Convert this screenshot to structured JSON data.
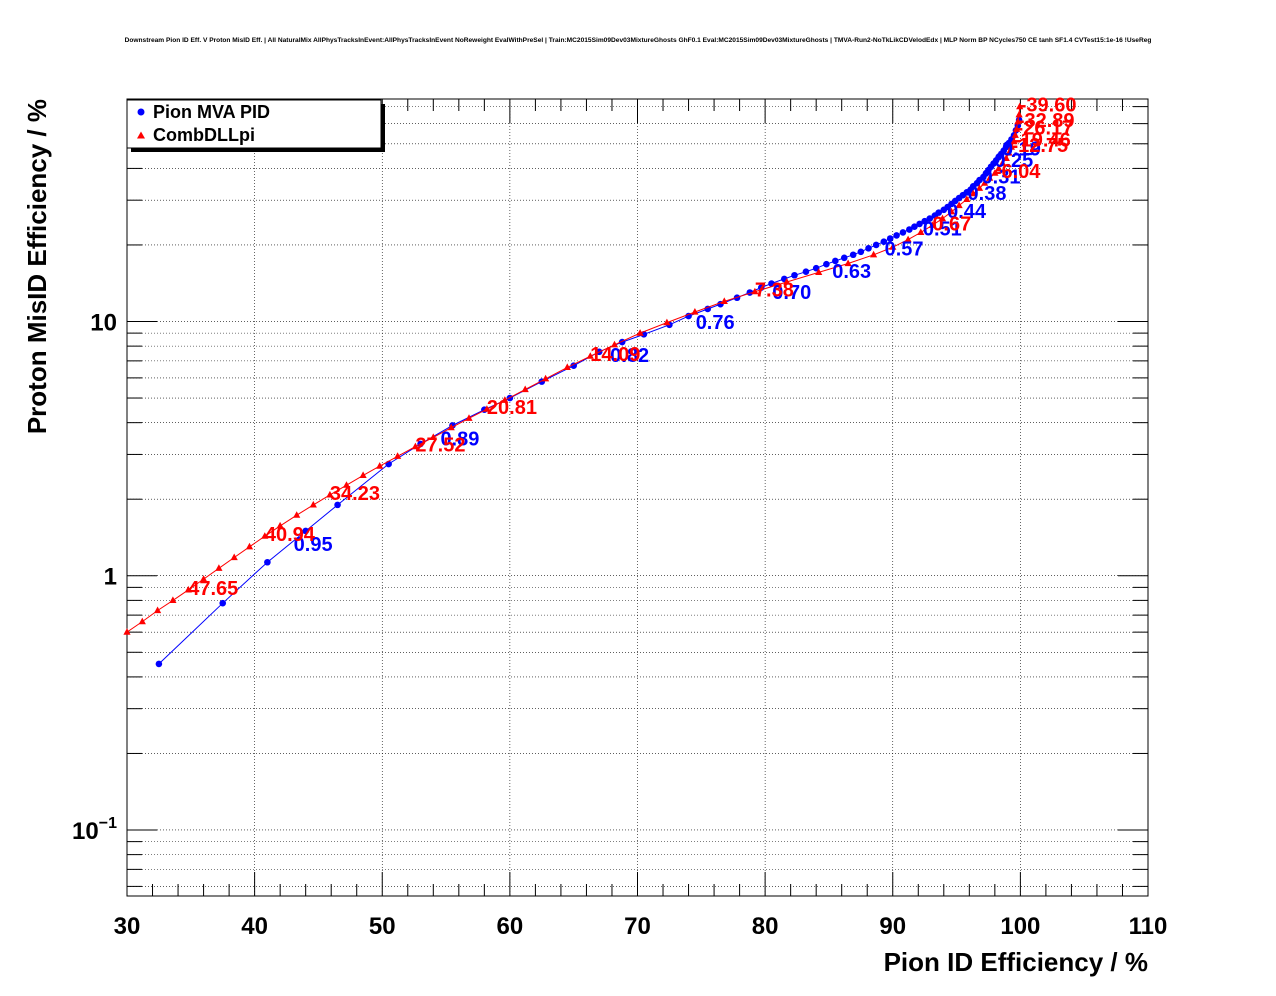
{
  "chart_data": {
    "type": "scatter",
    "title": "Downstream Pion ID Eff. V Proton MisID Eff. | All NaturalMix AllPhysTracksInEvent:AllPhysTracksInEvent NoReweight EvalWithPreSel | Train:MC2015Sim09Dev03MixtureGhosts GhF0.1 Eval:MC2015Sim09Dev03MixtureGhosts | TMVA-Run2-NoTkLikCDVelodEdx | MLP Norm BP NCycles750 CE tanh SF1.4 CVTest15:1e-16 !UseReg",
    "xlabel": "Pion ID Efficiency / %",
    "ylabel": "Proton MisID Efficiency / %",
    "xlim": [
      30,
      110
    ],
    "ylim": [
      0.055,
      75
    ],
    "yscale": "log",
    "grid": true,
    "legend_position": "top-left",
    "x_ticks": [
      "30",
      "40",
      "50",
      "60",
      "70",
      "80",
      "90",
      "100",
      "110"
    ],
    "y_ticks": [
      {
        "value": 0.1,
        "base": "10",
        "exp": "−1"
      },
      {
        "value": 1,
        "base": "1",
        "exp": ""
      },
      {
        "value": 10,
        "base": "10",
        "exp": ""
      }
    ],
    "series": [
      {
        "name": "Pion MVA PID",
        "color": "#0000ff",
        "marker": "circle",
        "x": [
          32.5,
          37.5,
          41.0,
          44.0,
          46.5,
          50.5,
          53.0,
          55.5,
          58.0,
          60.0,
          62.5,
          65.0,
          67.0,
          68.8,
          70.5,
          72.5,
          74.0,
          75.5,
          76.5,
          77.8,
          78.8,
          79.7,
          80.5,
          81.5,
          82.3,
          83.2,
          84.0,
          84.8,
          85.5,
          86.2,
          86.9,
          87.5,
          88.1,
          88.7,
          89.3,
          89.8,
          90.3,
          90.8,
          91.3,
          91.7,
          92.1,
          92.5,
          92.9,
          93.3,
          93.6,
          94.0,
          94.3,
          94.6,
          94.9,
          95.2,
          95.5,
          95.8,
          96.1,
          96.3,
          96.6,
          96.8,
          97.1,
          97.3,
          97.5,
          97.7,
          97.9,
          98.1,
          98.3,
          98.5,
          98.7,
          98.9,
          99.1,
          99.3,
          99.5,
          99.65,
          99.8,
          99.9
        ],
        "y": [
          0.45,
          0.78,
          1.13,
          1.5,
          1.9,
          2.75,
          3.3,
          3.9,
          4.5,
          5.0,
          5.8,
          6.7,
          7.6,
          8.3,
          8.9,
          9.7,
          10.5,
          11.2,
          11.7,
          12.4,
          13.0,
          13.6,
          14.1,
          14.7,
          15.2,
          15.7,
          16.2,
          16.8,
          17.3,
          17.8,
          18.3,
          18.8,
          19.4,
          20.0,
          20.6,
          21.2,
          21.8,
          22.4,
          23.0,
          23.6,
          24.2,
          24.8,
          25.4,
          26.1,
          26.8,
          27.5,
          28.2,
          29.0,
          29.8,
          30.6,
          31.4,
          32.2,
          33.0,
          34.0,
          35.0,
          36.0,
          37.0,
          38.2,
          39.4,
          40.6,
          41.8,
          43.0,
          44.3,
          45.6,
          47.0,
          48.6,
          50.3,
          52.0,
          54.0,
          56.5,
          59.0,
          62.0
        ],
        "labels": [
          {
            "x": 44.0,
            "y": 1.5,
            "text": "0.95"
          },
          {
            "x": 55.5,
            "y": 3.9,
            "text": "0.89"
          },
          {
            "x": 68.8,
            "y": 8.3,
            "text": "0.82"
          },
          {
            "x": 75.5,
            "y": 11.2,
            "text": "0.76"
          },
          {
            "x": 81.5,
            "y": 14.7,
            "text": "0.70"
          },
          {
            "x": 86.2,
            "y": 17.8,
            "text": "0.63"
          },
          {
            "x": 90.3,
            "y": 21.8,
            "text": "0.57"
          },
          {
            "x": 93.3,
            "y": 26.1,
            "text": "0.51"
          },
          {
            "x": 95.2,
            "y": 30.6,
            "text": "0.44"
          },
          {
            "x": 96.8,
            "y": 36.0,
            "text": "0.38"
          },
          {
            "x": 97.9,
            "y": 41.8,
            "text": "0.31"
          },
          {
            "x": 98.9,
            "y": 48.6,
            "text": "0.25"
          },
          {
            "x": 99.5,
            "y": 54.0,
            "text": "0.19"
          }
        ]
      },
      {
        "name": "CombDLLpi",
        "color": "#ff0000",
        "marker": "triangle",
        "x": [
          30.0,
          31.2,
          32.4,
          33.6,
          34.8,
          36.0,
          37.2,
          38.4,
          39.6,
          40.8,
          42.0,
          43.3,
          44.6,
          45.9,
          47.2,
          48.5,
          49.8,
          51.2,
          52.6,
          54.0,
          55.4,
          56.8,
          58.2,
          59.6,
          61.2,
          62.8,
          64.5,
          66.3,
          68.2,
          70.2,
          72.3,
          74.5,
          76.8,
          79.2,
          81.7,
          84.2,
          86.5,
          88.5,
          90.0,
          91.2,
          92.2,
          93.1,
          93.9,
          94.6,
          95.2,
          95.8,
          96.3,
          96.8,
          97.2,
          97.6,
          98.0,
          98.3,
          98.6,
          98.9,
          99.1,
          99.3,
          99.5,
          99.6,
          99.7,
          99.8,
          99.9,
          99.95
        ],
        "y": [
          0.6,
          0.66,
          0.73,
          0.8,
          0.88,
          0.97,
          1.07,
          1.18,
          1.3,
          1.43,
          1.57,
          1.73,
          1.9,
          2.08,
          2.27,
          2.48,
          2.7,
          2.95,
          3.22,
          3.5,
          3.82,
          4.16,
          4.52,
          4.9,
          5.4,
          5.95,
          6.6,
          7.3,
          8.1,
          9.0,
          9.9,
          10.9,
          12.0,
          13.1,
          14.3,
          15.6,
          16.9,
          18.3,
          19.6,
          21.0,
          22.4,
          23.9,
          25.4,
          27.0,
          28.6,
          30.2,
          31.8,
          33.4,
          35.0,
          36.6,
          38.3,
          40.0,
          41.9,
          43.8,
          46.0,
          48.5,
          51.0,
          54.0,
          57.0,
          61.0,
          65.0,
          70.0
        ],
        "labels": [
          {
            "x": 34.8,
            "y": 0.88,
            "text": "47.65"
          },
          {
            "x": 40.8,
            "y": 1.43,
            "text": "40.94"
          },
          {
            "x": 45.9,
            "y": 2.08,
            "text": "34.23"
          },
          {
            "x": 52.6,
            "y": 3.22,
            "text": "27.52"
          },
          {
            "x": 58.2,
            "y": 4.52,
            "text": "20.81"
          },
          {
            "x": 66.3,
            "y": 7.3,
            "text": "14.09"
          },
          {
            "x": 79.2,
            "y": 13.1,
            "text": "7.38"
          },
          {
            "x": 93.1,
            "y": 23.9,
            "text": "0.67"
          },
          {
            "x": 98.0,
            "y": 38.3,
            "text": "-6.04"
          },
          {
            "x": 99.3,
            "y": 48.5,
            "text": "-12.75"
          },
          {
            "x": 99.5,
            "y": 51.0,
            "text": "-19.46"
          },
          {
            "x": 99.7,
            "y": 57.0,
            "text": "-26.17"
          },
          {
            "x": 99.8,
            "y": 61.0,
            "text": "-32.89"
          },
          {
            "x": 99.95,
            "y": 70.0,
            "text": "-39.60"
          }
        ]
      }
    ]
  }
}
